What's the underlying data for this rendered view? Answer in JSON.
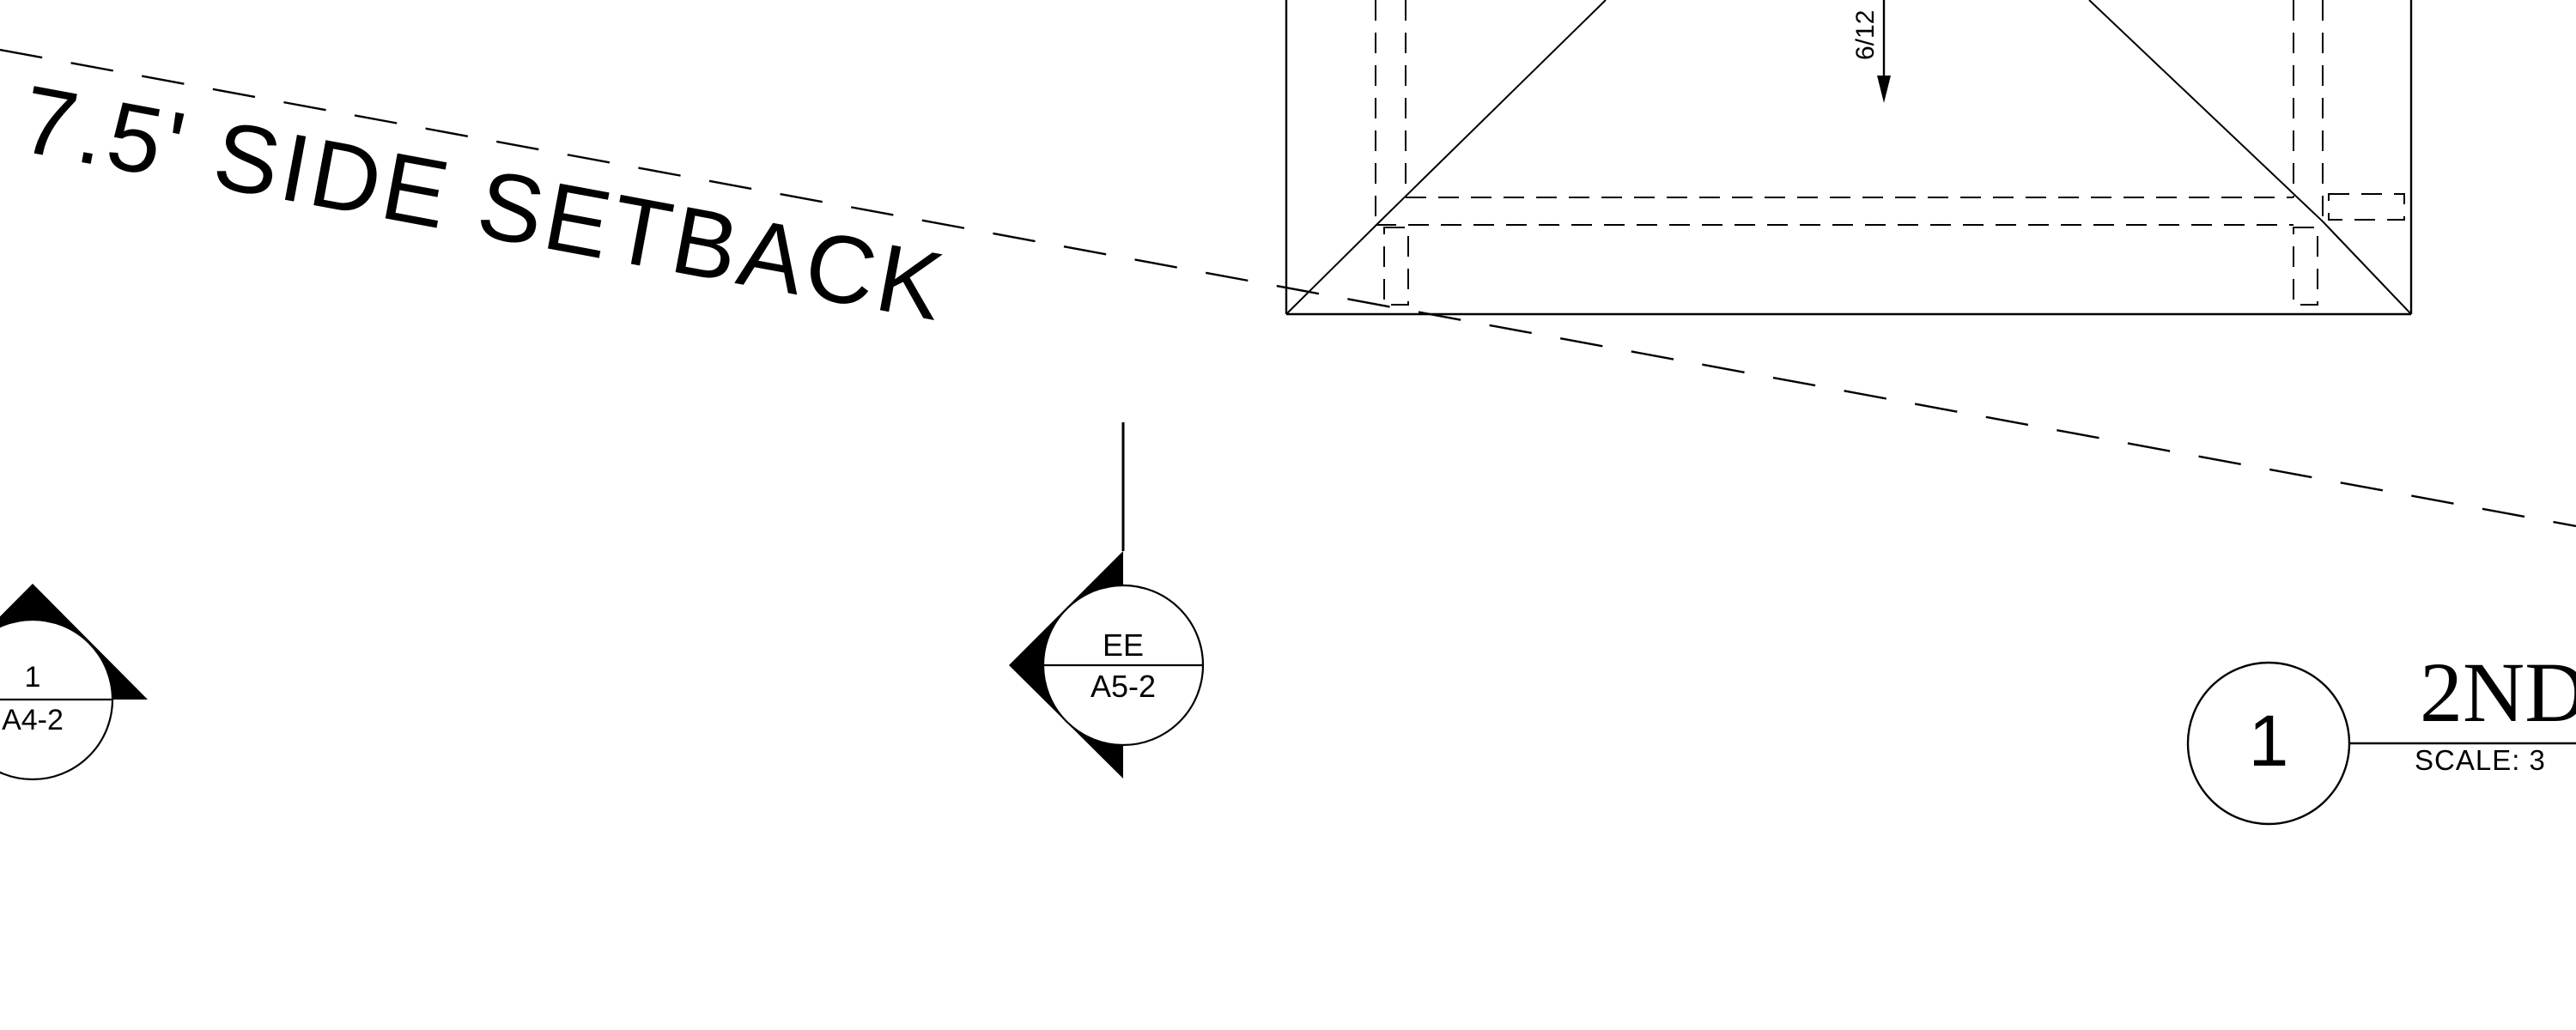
{
  "setback_label": "7.5' SIDE SETBACK",
  "roof": {
    "slope_label": "6/12"
  },
  "section_markers": [
    {
      "number": "1",
      "sheet": "A4-2"
    },
    {
      "number": "EE",
      "sheet": "A5-2"
    }
  ],
  "title_block": {
    "drawing_number": "1",
    "title": "2ND",
    "scale": "SCALE: 3"
  },
  "colors": {
    "ink": "#000000",
    "paper": "#ffffff"
  }
}
